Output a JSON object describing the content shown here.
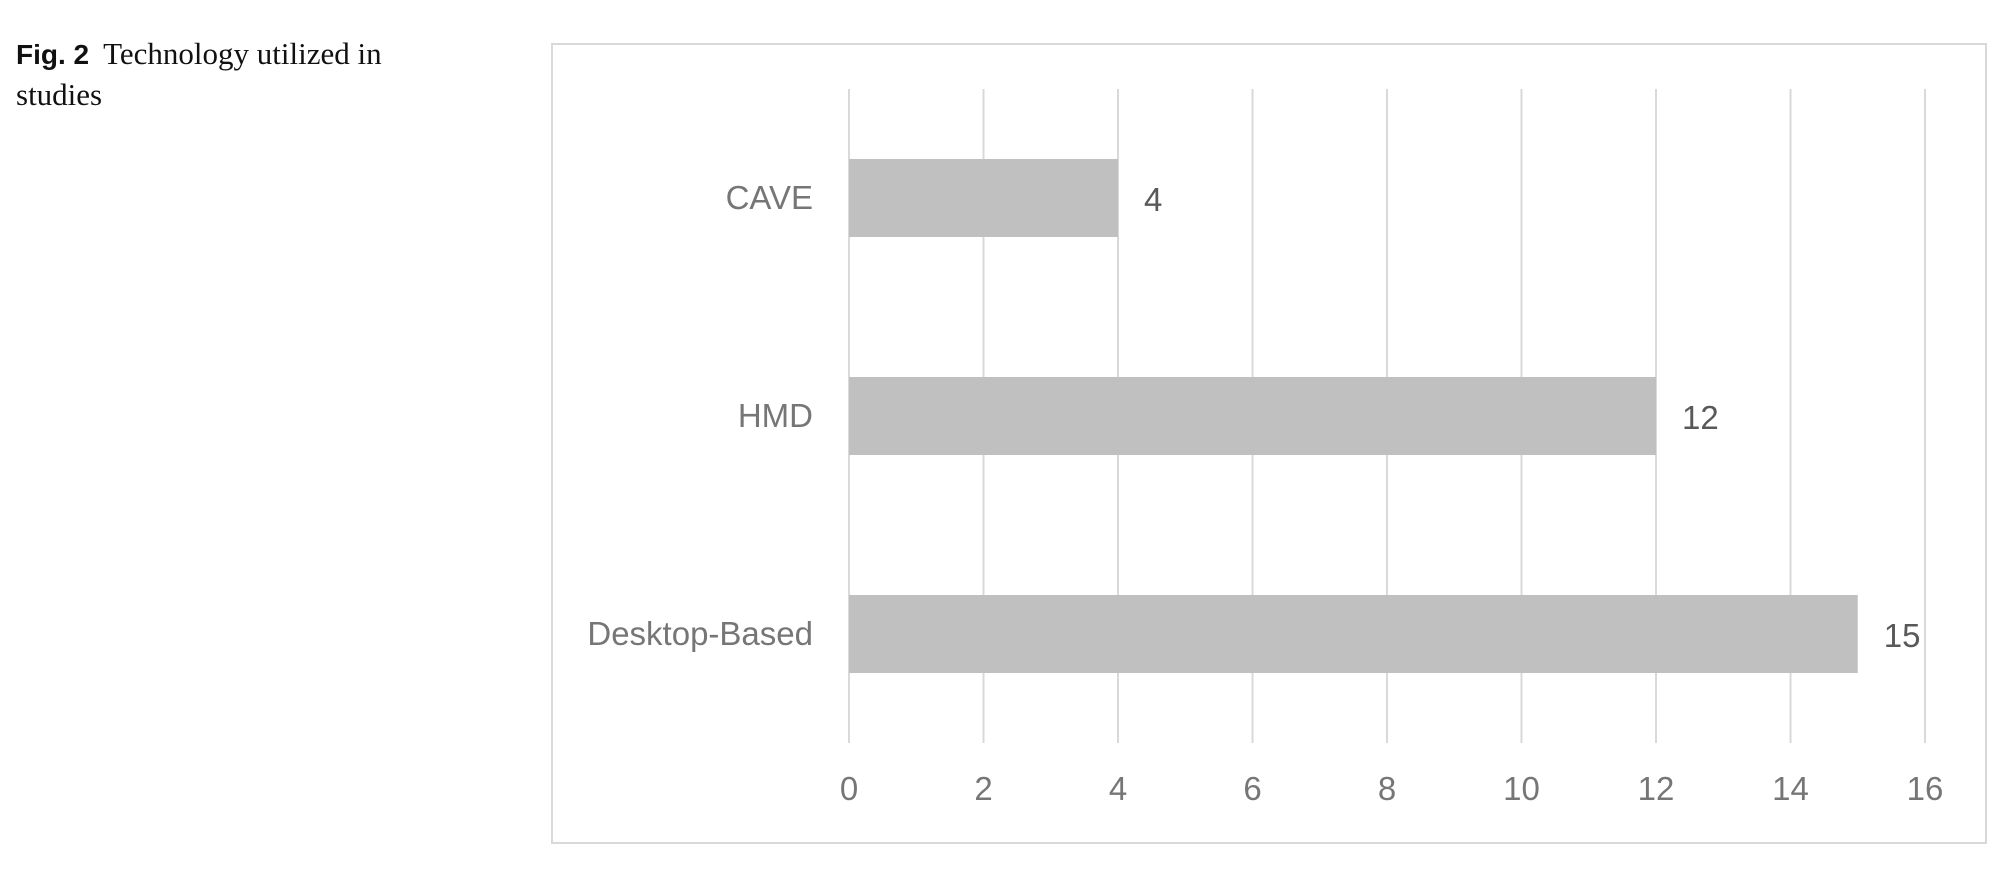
{
  "caption": {
    "figure_label": "Fig. 2",
    "text": "Technology utilized in studies"
  },
  "chart_data": {
    "type": "bar",
    "orientation": "horizontal",
    "title": "",
    "xlabel": "",
    "ylabel": "",
    "categories": [
      "CAVE",
      "HMD",
      "Desktop-Based"
    ],
    "values": [
      4,
      12,
      15
    ],
    "data_labels": [
      "4",
      "12",
      "15"
    ],
    "xlim": [
      0,
      16
    ],
    "x_ticks": [
      0,
      2,
      4,
      6,
      8,
      10,
      12,
      14,
      16
    ],
    "x_tick_labels": [
      "0",
      "2",
      "4",
      "6",
      "8",
      "10",
      "12",
      "14",
      "16"
    ],
    "grid": true,
    "legend": "none",
    "bar_color": "#c0c0c0",
    "grid_color": "#d9d9d9",
    "label_color": "#767676"
  }
}
